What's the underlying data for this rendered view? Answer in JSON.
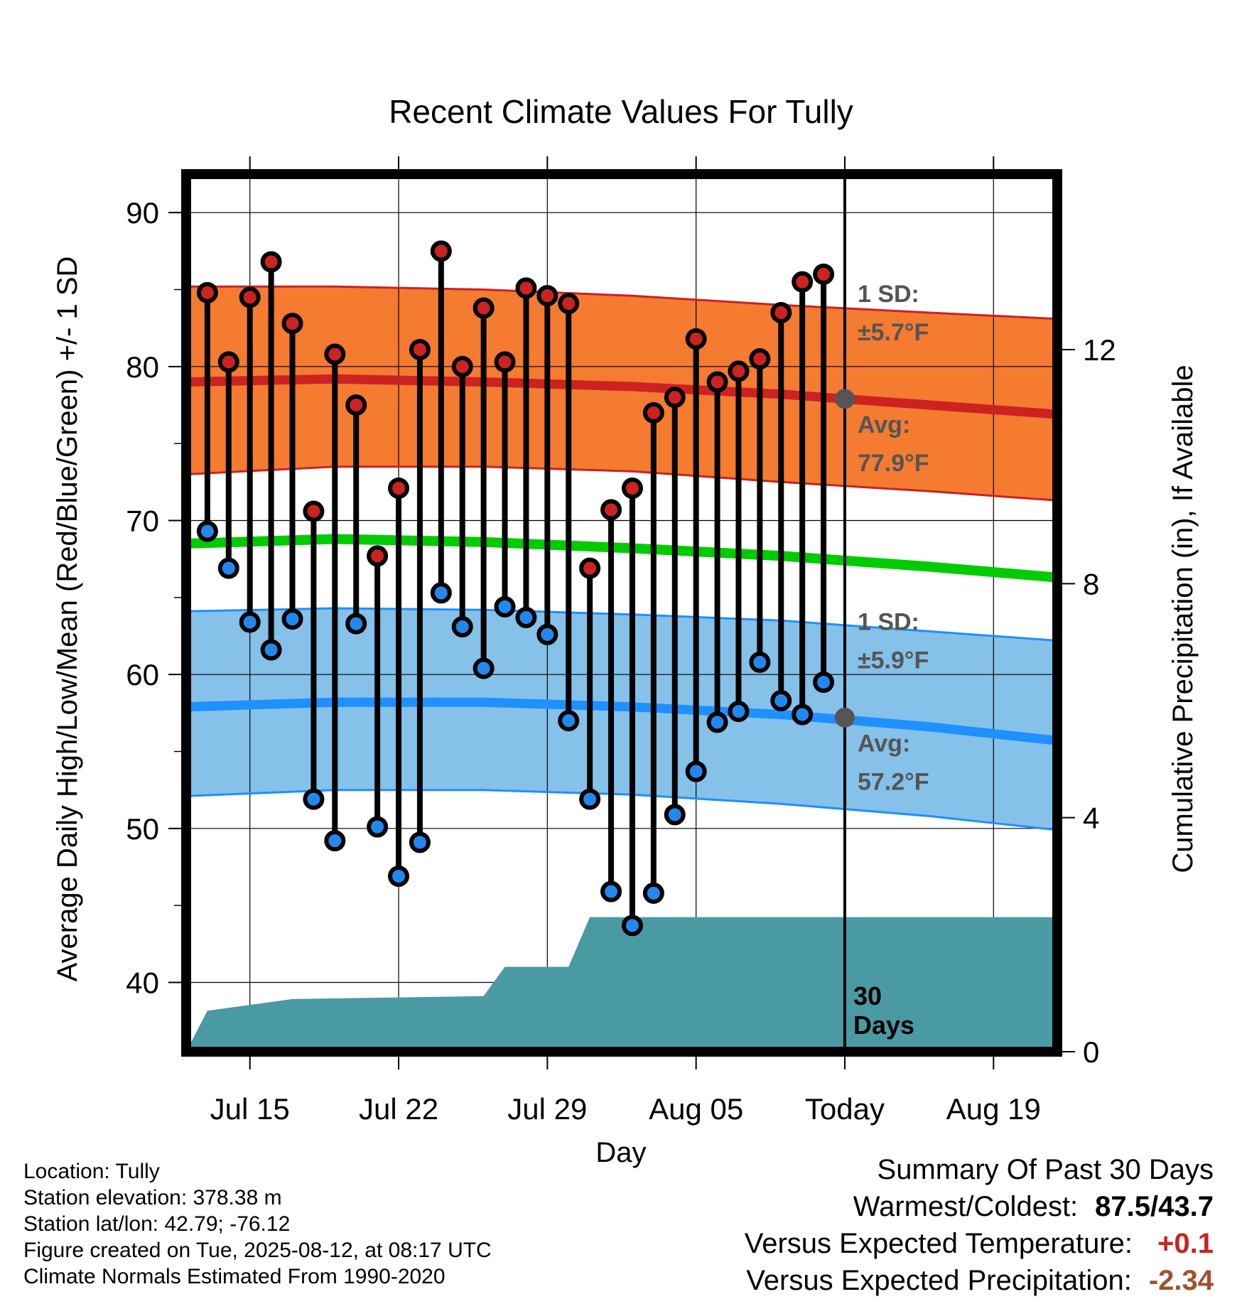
{
  "chart_data": {
    "type": "line",
    "title": "Recent Climate Values For Tully",
    "xlabel": "Day",
    "ylabel": "Average Daily High/Low/Mean (Red/Blue/Green) +/- 1 SD",
    "y2label": "Cumulative Precipitation (in), If Available",
    "x_tick_labels": [
      "Jul 15",
      "Jul 22",
      "Jul 29",
      "Aug 05",
      "Today",
      "Aug 19"
    ],
    "x_tick_dates": [
      "2025-07-15",
      "2025-07-22",
      "2025-07-29",
      "2025-08-05",
      "2025-08-12",
      "2025-08-19"
    ],
    "xlim": [
      "2025-07-12",
      "2025-08-22"
    ],
    "ylim": [
      35.5,
      92.5
    ],
    "y_ticks": [
      40,
      50,
      60,
      70,
      80,
      90
    ],
    "y2lim": [
      0,
      15
    ],
    "y2_ticks": [
      0,
      4,
      8,
      12
    ],
    "grid": true,
    "dates": [
      "2025-07-13",
      "2025-07-14",
      "2025-07-15",
      "2025-07-16",
      "2025-07-17",
      "2025-07-18",
      "2025-07-19",
      "2025-07-20",
      "2025-07-21",
      "2025-07-22",
      "2025-07-23",
      "2025-07-24",
      "2025-07-25",
      "2025-07-26",
      "2025-07-27",
      "2025-07-28",
      "2025-07-29",
      "2025-07-30",
      "2025-07-31",
      "2025-08-01",
      "2025-08-02",
      "2025-08-03",
      "2025-08-04",
      "2025-08-05",
      "2025-08-06",
      "2025-08-07",
      "2025-08-08",
      "2025-08-09",
      "2025-08-10",
      "2025-08-11"
    ],
    "series": [
      {
        "name": "Daily High",
        "color": "#cc2222",
        "values": [
          84.8,
          80.3,
          84.5,
          86.8,
          82.8,
          70.6,
          80.8,
          77.5,
          67.7,
          72.1,
          81.1,
          87.5,
          80.0,
          83.8,
          80.3,
          85.1,
          84.6,
          84.1,
          66.9,
          70.7,
          72.1,
          77.0,
          78.0,
          81.8,
          79.0,
          79.7,
          80.5,
          83.5,
          85.5,
          86.0
        ]
      },
      {
        "name": "Daily Low",
        "color": "#2288ee",
        "values": [
          69.3,
          66.9,
          63.4,
          61.6,
          63.6,
          51.9,
          49.2,
          63.3,
          50.1,
          46.9,
          49.1,
          65.3,
          63.1,
          60.4,
          64.4,
          63.7,
          62.6,
          57.0,
          51.9,
          45.9,
          43.7,
          45.8,
          50.9,
          53.7,
          56.9,
          57.6,
          60.8,
          58.3,
          57.4,
          59.5
        ]
      }
    ],
    "normals": {
      "dates": [
        "2025-07-12",
        "2025-07-19",
        "2025-07-26",
        "2025-08-02",
        "2025-08-09",
        "2025-08-16",
        "2025-08-22"
      ],
      "high_avg": [
        79.0,
        79.2,
        79.0,
        78.7,
        78.2,
        77.5,
        76.9
      ],
      "high_upper": [
        85.2,
        85.2,
        85.0,
        84.6,
        84.0,
        83.5,
        83.1
      ],
      "high_lower": [
        73.0,
        73.5,
        73.5,
        73.2,
        72.5,
        71.9,
        71.3
      ],
      "mean": [
        68.5,
        68.8,
        68.6,
        68.2,
        67.7,
        67.0,
        66.3
      ],
      "low_avg": [
        57.9,
        58.2,
        58.2,
        57.9,
        57.4,
        56.6,
        55.7
      ],
      "low_upper": [
        64.1,
        64.3,
        64.2,
        63.9,
        63.5,
        62.8,
        62.2
      ],
      "low_lower": [
        52.1,
        52.5,
        52.5,
        52.2,
        51.6,
        50.8,
        49.9
      ],
      "high_color": "#cc2222",
      "high_band_color": "#f47b30",
      "mean_color": "#00cc00",
      "low_color": "#1e90ff",
      "low_band_color": "#85c1e9"
    },
    "precipitation": {
      "color": "#4a9aa3",
      "dates": [
        "2025-07-12",
        "2025-07-13",
        "2025-07-15",
        "2025-07-17",
        "2025-07-26",
        "2025-07-27",
        "2025-07-30",
        "2025-07-31",
        "2025-08-22"
      ],
      "values": [
        0.0,
        0.7,
        0.8,
        0.9,
        0.95,
        1.45,
        1.45,
        2.3,
        2.3
      ]
    },
    "today_marker": {
      "date": "2025-08-12",
      "high_avg": 77.9,
      "low_avg": 57.2,
      "high_sd_label": "1 SD:",
      "high_sd_value": "±5.7°F",
      "high_avg_label": "Avg:",
      "high_avg_value": "77.9°F",
      "low_sd_label": "1 SD:",
      "low_sd_value": "±5.9°F",
      "low_avg_label": "Avg:",
      "low_avg_value": "57.2°F"
    },
    "days_label": [
      "30",
      "Days"
    ]
  },
  "info": {
    "location": "Location: Tully",
    "elevation": "Station elevation: 378.38 m",
    "latlon": "Station lat/lon: 42.79; -76.12",
    "created": "Figure created on Tue, 2025-08-12, at 08:17 UTC",
    "normals": "Climate Normals Estimated From 1990-2020"
  },
  "summary": {
    "heading": "Summary Of Past 30 Days",
    "warmest_coldest_label": "Warmest/Coldest:",
    "warmest_coldest_value": "87.5/43.7",
    "temp_label": "Versus Expected Temperature:",
    "temp_value": "+0.1",
    "temp_color": "#cc2222",
    "precip_label": "Versus Expected Precipitation:",
    "precip_value": "-2.34",
    "precip_color": "#a0522d"
  }
}
